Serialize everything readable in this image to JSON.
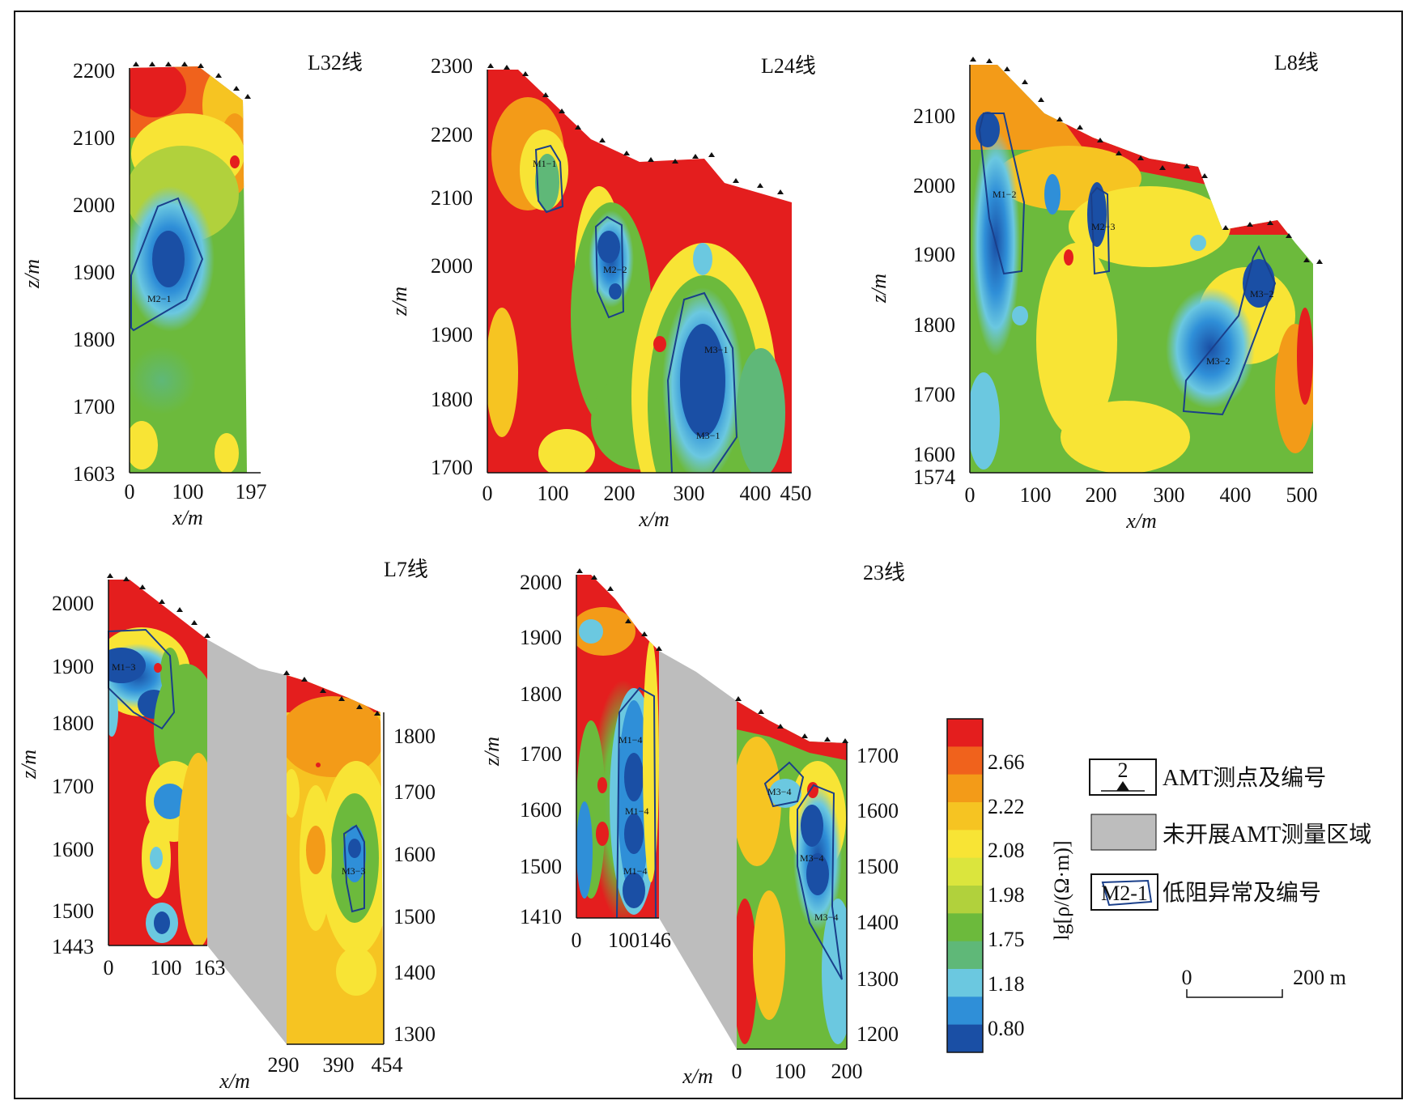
{
  "colorbar": {
    "label": "lg[ρ/(Ω·m)]",
    "ticks": [
      "2.66",
      "2.22",
      "2.08",
      "1.98",
      "1.75",
      "1.18",
      "0.80"
    ],
    "colors": [
      "#e41e1e",
      "#f0621c",
      "#f39b18",
      "#f6c422",
      "#f8e435",
      "#dbe53d",
      "#b1d13c",
      "#6cba3c",
      "#5fb878",
      "#6bc8e0",
      "#2f8fd8",
      "#1a4fa5"
    ]
  },
  "legend": {
    "station_number": "2",
    "station_label": "AMT测点及编号",
    "gray_label": "未开展AMT测量区域",
    "anomaly_code": "M2-1",
    "anomaly_label": "低阻异常及编号",
    "scale_left": "0",
    "scale_right": "200 m"
  },
  "panels": {
    "p1": {
      "title": "L32线",
      "zlabel": "z/m",
      "xlabel": "x/m",
      "zticks": [
        "2200",
        "2100",
        "2000",
        "1900",
        "1800",
        "1700",
        "1603"
      ],
      "xticks": [
        "0",
        "100",
        "197"
      ],
      "anomalies": [
        "M2−1"
      ]
    },
    "p2": {
      "title": "L24线",
      "zlabel": "z/m",
      "xlabel": "x/m",
      "zticks": [
        "2300",
        "2200",
        "2100",
        "2000",
        "1900",
        "1800",
        "1700"
      ],
      "xticks": [
        "0",
        "100",
        "200",
        "300",
        "400",
        "450"
      ],
      "anomalies": [
        "M1−1",
        "M2−2",
        "M3−1",
        "M3−1"
      ]
    },
    "p3": {
      "title": "L8线",
      "zlabel": "z/m",
      "xlabel": "x/m",
      "zticks": [
        "2100",
        "2000",
        "1900",
        "1800",
        "1700",
        "1600",
        "1574"
      ],
      "xticks": [
        "0",
        "100",
        "200",
        "300",
        "400",
        "500"
      ],
      "anomalies": [
        "M1−2",
        "M2−3",
        "M3−2",
        "M3−2"
      ]
    },
    "p4": {
      "title": "L7线",
      "zlabel": "z/m",
      "xlabel": "x/m",
      "zticks_left": [
        "2000",
        "1900",
        "1800",
        "1700",
        "1600",
        "1500",
        "1443"
      ],
      "zticks_right": [
        "1800",
        "1700",
        "1600",
        "1500",
        "1400",
        "1300"
      ],
      "xticks_left": [
        "0",
        "100",
        "163"
      ],
      "xticks_right": [
        "290",
        "390",
        "454"
      ],
      "anomalies": [
        "M1−3",
        "M3−3"
      ]
    },
    "p5": {
      "title": "23线",
      "zlabel": "z/m",
      "xlabel": "x/m",
      "zticks_left": [
        "2000",
        "1900",
        "1800",
        "1700",
        "1600",
        "1500",
        "1410"
      ],
      "zticks_right": [
        "1700",
        "1600",
        "1500",
        "1400",
        "1300",
        "1200"
      ],
      "xticks_left": [
        "0",
        "100146"
      ],
      "xticks_right": [
        "0",
        "100",
        "200"
      ],
      "anomalies": [
        "M1−4",
        "M1−4",
        "M1−4",
        "M3−4",
        "M3−4",
        "M3−4"
      ]
    }
  }
}
